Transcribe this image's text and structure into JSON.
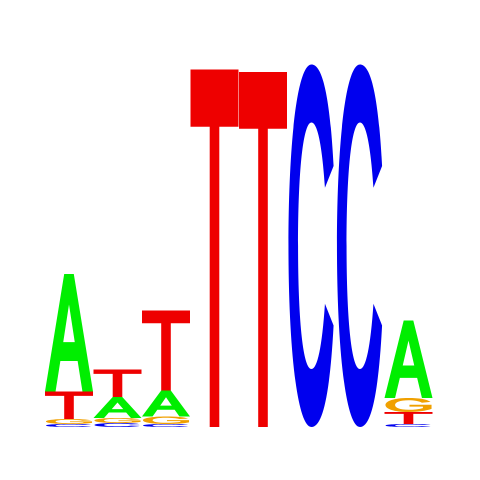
{
  "chart_data": {
    "type": "sequence_logo",
    "colors": {
      "A": "#00ee00",
      "C": "#0000ee",
      "G": "#f0a000",
      "T": "#ee0000"
    },
    "positions": [
      {
        "stack": [
          {
            "base": "C",
            "height": 0.06
          },
          {
            "base": "G",
            "height": 0.1
          },
          {
            "base": "T",
            "height": 0.55
          },
          {
            "base": "A",
            "height": 2.35
          }
        ]
      },
      {
        "stack": [
          {
            "base": "C",
            "height": 0.08
          },
          {
            "base": "G",
            "height": 0.1
          },
          {
            "base": "A",
            "height": 0.42
          },
          {
            "base": "T",
            "height": 0.55
          }
        ]
      },
      {
        "stack": [
          {
            "base": "C",
            "height": 0.06
          },
          {
            "base": "G",
            "height": 0.15
          },
          {
            "base": "A",
            "height": 0.52
          },
          {
            "base": "T",
            "height": 1.6
          }
        ]
      },
      {
        "stack": [
          {
            "base": "T",
            "height": 7.15
          }
        ]
      },
      {
        "stack": [
          {
            "base": "T",
            "height": 7.1
          }
        ]
      },
      {
        "stack": [
          {
            "base": "C",
            "height": 7.25
          }
        ]
      },
      {
        "stack": [
          {
            "base": "C",
            "height": 7.25
          }
        ]
      },
      {
        "stack": [
          {
            "base": "C",
            "height": 0.06
          },
          {
            "base": "T",
            "height": 0.24
          },
          {
            "base": "G",
            "height": 0.28
          },
          {
            "base": "A",
            "height": 1.55
          }
        ]
      }
    ]
  }
}
